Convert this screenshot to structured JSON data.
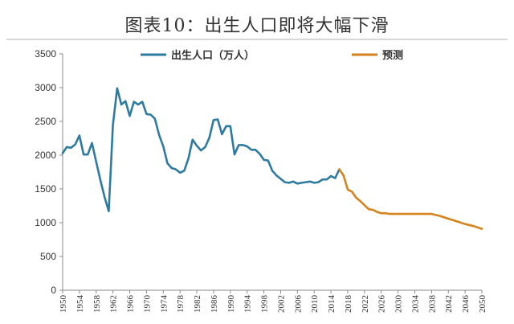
{
  "chart_data": {
    "type": "line",
    "title": "图表10：出生人口即将大幅下滑",
    "xlabel": "",
    "ylabel": "",
    "ylim": [
      0,
      3500
    ],
    "xlim": [
      1950,
      2050
    ],
    "y_ticks": [
      0,
      500,
      1000,
      1500,
      2000,
      2500,
      3000,
      3500
    ],
    "x_ticks": [
      1950,
      1954,
      1958,
      1962,
      1966,
      1970,
      1974,
      1978,
      1982,
      1986,
      1990,
      1994,
      1998,
      2002,
      2006,
      2010,
      2014,
      2018,
      2022,
      2026,
      2030,
      2034,
      2038,
      2042,
      2046,
      2050
    ],
    "legend_position": "top",
    "grid": false,
    "series": [
      {
        "name": "出生人口（万人）",
        "color": "#2e7ba1",
        "x": [
          1950,
          1951,
          1952,
          1953,
          1954,
          1955,
          1956,
          1957,
          1958,
          1959,
          1960,
          1961,
          1962,
          1963,
          1964,
          1965,
          1966,
          1967,
          1968,
          1969,
          1970,
          1971,
          1972,
          1973,
          1974,
          1975,
          1976,
          1977,
          1978,
          1979,
          1980,
          1981,
          1982,
          1983,
          1984,
          1985,
          1986,
          1987,
          1988,
          1989,
          1990,
          1991,
          1992,
          1993,
          1994,
          1995,
          1996,
          1997,
          1998,
          1999,
          2000,
          2001,
          2002,
          2003,
          2004,
          2005,
          2006,
          2007,
          2008,
          2009,
          2010,
          2011,
          2012,
          2013,
          2014,
          2015,
          2016
        ],
        "values": [
          2030,
          2120,
          2110,
          2160,
          2290,
          2010,
          2010,
          2180,
          1900,
          1630,
          1380,
          1170,
          2450,
          2990,
          2750,
          2800,
          2580,
          2790,
          2750,
          2790,
          2610,
          2600,
          2540,
          2300,
          2130,
          1880,
          1810,
          1790,
          1740,
          1770,
          1950,
          2230,
          2140,
          2070,
          2120,
          2260,
          2520,
          2530,
          2310,
          2430,
          2430,
          2010,
          2150,
          2150,
          2130,
          2080,
          2080,
          2020,
          1930,
          1920,
          1770,
          1700,
          1650,
          1600,
          1590,
          1610,
          1580,
          1590,
          1600,
          1610,
          1590,
          1600,
          1640,
          1640,
          1690,
          1660,
          1790
        ]
      },
      {
        "name": "预测",
        "color": "#d4831e",
        "x": [
          2016,
          2017,
          2018,
          2019,
          2020,
          2021,
          2022,
          2023,
          2024,
          2025,
          2026,
          2027,
          2028,
          2030,
          2032,
          2034,
          2036,
          2038,
          2040,
          2042,
          2044,
          2046,
          2048,
          2050
        ],
        "values": [
          1790,
          1700,
          1490,
          1460,
          1370,
          1320,
          1260,
          1200,
          1190,
          1160,
          1140,
          1140,
          1130,
          1130,
          1130,
          1130,
          1130,
          1130,
          1100,
          1060,
          1020,
          980,
          950,
          910
        ]
      }
    ]
  }
}
